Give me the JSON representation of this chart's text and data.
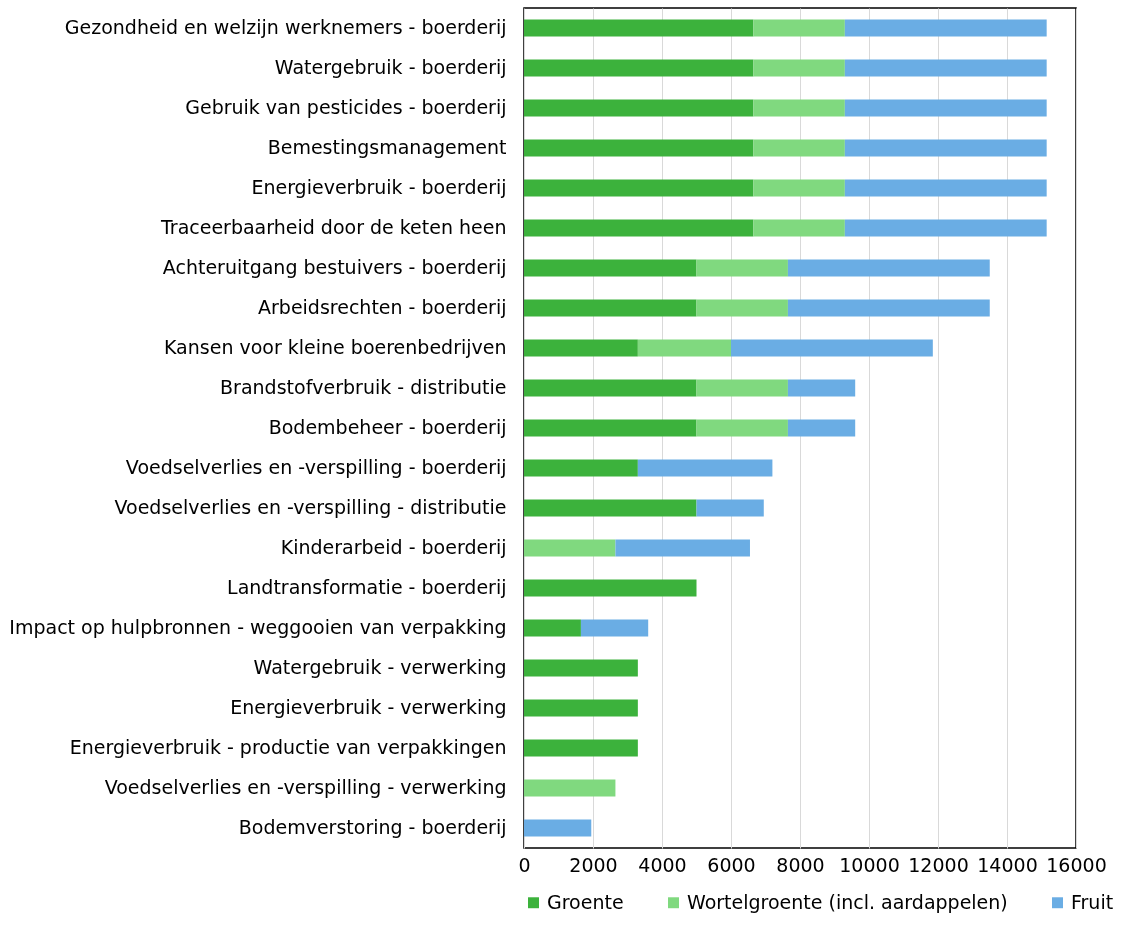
{
  "chart_data": {
    "type": "bar",
    "orientation": "horizontal",
    "stacked": true,
    "categories": [
      "Gezondheid en welzijn werknemers - boerderij",
      "Watergebruik - boerderij",
      "Gebruik van pesticides - boerderij",
      "Bemestingsmanagement",
      "Energieverbruik - boerderij",
      "Traceerbaarheid door de keten heen",
      "Achteruitgang bestuivers - boerderij",
      "Arbeidsrechten - boerderij",
      "Kansen voor kleine boerenbedrijven",
      "Brandstofverbruik - distributie",
      "Bodembeheer - boerderij",
      "Voedselverlies en -verspilling - boerderij",
      "Voedselverlies en -verspilling - distributie",
      "Kinderarbeid - boerderij",
      "Landtransformatie - boerderij",
      "Impact op hulpbronnen - weggooien van verpakking",
      "Watergebruik - verwerking",
      "Energieverbruik - verwerking",
      "Energieverbruik - productie van verpakkingen",
      "Voedselverlies en -verspilling - verwerking",
      "Bodemverstoring - boerderij"
    ],
    "series": [
      {
        "name": "Groente",
        "color": "#3cb23c",
        "values": [
          6650,
          6650,
          6650,
          6650,
          6650,
          6650,
          5000,
          5000,
          3300,
          5000,
          5000,
          3300,
          5000,
          null,
          5000,
          1650,
          3300,
          3300,
          3300,
          null,
          null
        ]
      },
      {
        "name": "Wortelgroente (incl. aardappelen)",
        "color": "#80d97f",
        "values": [
          2650,
          2650,
          2650,
          2650,
          2650,
          2650,
          2650,
          2650,
          2700,
          2650,
          2650,
          null,
          null,
          2650,
          null,
          null,
          null,
          null,
          null,
          2650,
          null
        ]
      },
      {
        "name": "Fruit",
        "color": "#6aade4",
        "values": [
          5850,
          5850,
          5850,
          5850,
          5850,
          5850,
          5850,
          5850,
          5850,
          1950,
          1950,
          3900,
          1950,
          3900,
          null,
          1950,
          null,
          null,
          null,
          null,
          1950
        ]
      }
    ],
    "xlim": [
      0,
      16000
    ],
    "xticks": [
      0,
      2000,
      4000,
      6000,
      8000,
      10000,
      12000,
      14000,
      16000
    ],
    "grid": "x",
    "legend": "bottom"
  }
}
